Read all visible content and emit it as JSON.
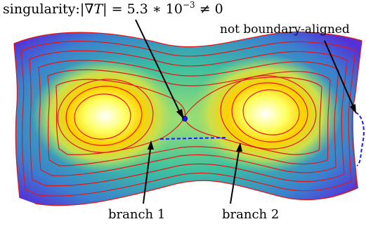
{
  "annotations": {
    "singularity_label": "singularity",
    "singularity_colon": ":",
    "singularity_formula_lhs": "|∇",
    "singularity_formula_var": "T",
    "singularity_formula_mid": "| = 5.3 ∗ 10",
    "singularity_formula_exp": "−3",
    "singularity_formula_rhs": " ≠ 0",
    "boundary_note": "not boundary-aligned",
    "branch_1": "branch 1",
    "branch_2": "branch 2"
  },
  "colors": {
    "contour": "#e01818",
    "singular_point": "#1a1aff",
    "branch_dashed": "#1a1aff",
    "arrow": "#000000",
    "field_low": "#5a32d8",
    "field_mid": "#2eb398",
    "field_high": "#ffe000",
    "field_peak": "#ffffff"
  }
}
